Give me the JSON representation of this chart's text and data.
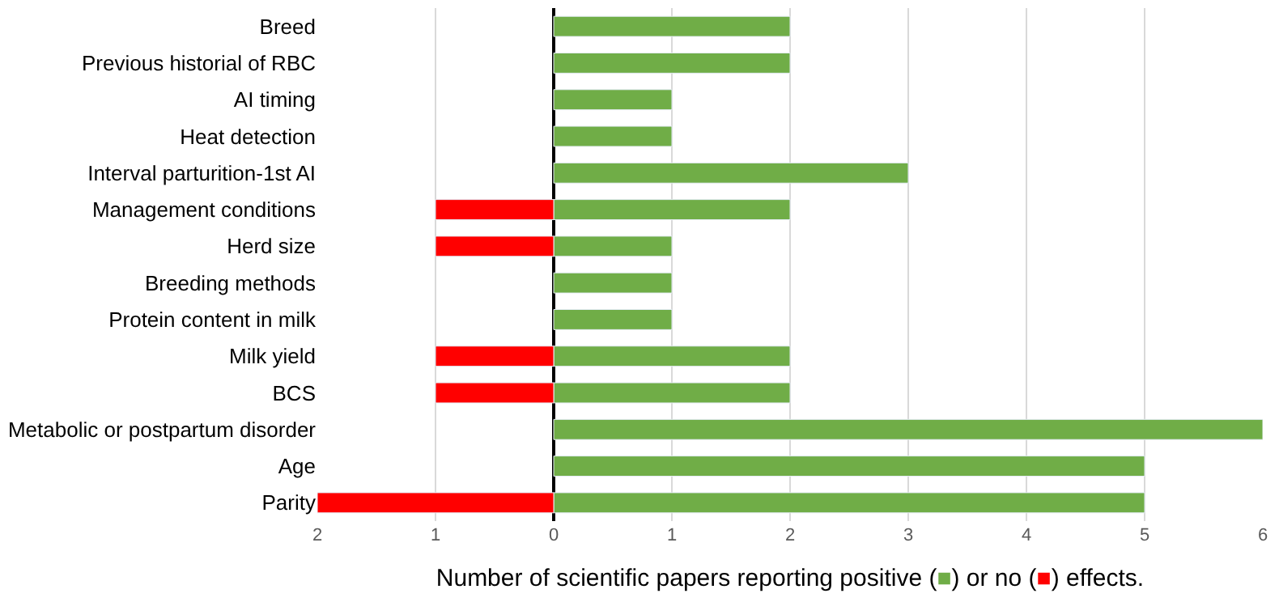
{
  "chart_data": {
    "type": "bar",
    "orientation": "horizontal",
    "stacked": true,
    "categories": [
      "Breed",
      "Previous historial of RBC",
      "AI timing",
      "Heat detection",
      "Interval parturition-1st AI",
      "Management conditions",
      "Herd size",
      "Breeding methods",
      "Protein content in milk",
      "Milk yield",
      "BCS",
      "Metabolic or postpartum disorder",
      "Age",
      "Parity"
    ],
    "series": [
      {
        "color": "#70ad47",
        "values": [
          2,
          2,
          1,
          1,
          3,
          2,
          1,
          1,
          1,
          2,
          2,
          6,
          5,
          5
        ]
      },
      {
        "color": "#ff0000",
        "values": [
          null,
          null,
          null,
          null,
          null,
          -1,
          -1,
          null,
          null,
          -1,
          -1,
          null,
          null,
          -2
        ]
      }
    ],
    "xlabel": "Number of scientific papers reporting positive (■) or no (■) effects.",
    "xlim": [
      -2,
      6
    ],
    "xticks": [
      {
        "value": -2,
        "label": "2"
      },
      {
        "value": -1,
        "label": "1"
      },
      0,
      1,
      2,
      3,
      4,
      5,
      6
    ],
    "grid": "x"
  }
}
